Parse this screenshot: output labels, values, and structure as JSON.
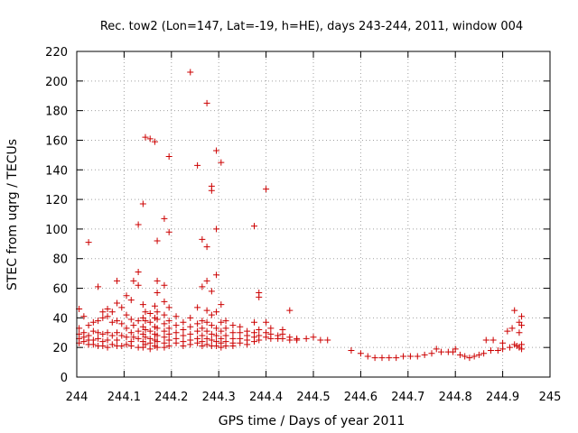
{
  "chart_data": {
    "type": "scatter",
    "title": "Rec. tow2 (Lon=147, Lat=-19, h=HE), days 243-244, 2011, window 004",
    "xlabel": "GPS time / Days of year 2011",
    "ylabel": "STEC from uqrg / TECUs",
    "xlim": [
      244,
      245
    ],
    "ylim": [
      0,
      220
    ],
    "xticks": [
      "244",
      "244.1",
      "244.2",
      "244.3",
      "244.4",
      "244.5",
      "244.6",
      "244.7",
      "244.8",
      "244.9",
      "245"
    ],
    "yticks": [
      "0",
      "20",
      "40",
      "60",
      "80",
      "100",
      "120",
      "140",
      "160",
      "180",
      "200",
      "220"
    ],
    "marker": "+",
    "color": "#cc0000",
    "grid": true,
    "series": [
      {
        "name": "STEC",
        "points": [
          [
            244.005,
            46
          ],
          [
            244.005,
            33
          ],
          [
            244.005,
            29
          ],
          [
            244.005,
            26
          ],
          [
            244.005,
            23
          ],
          [
            244.015,
            41
          ],
          [
            244.015,
            30
          ],
          [
            244.015,
            27
          ],
          [
            244.015,
            24
          ],
          [
            244.025,
            91
          ],
          [
            244.025,
            35
          ],
          [
            244.025,
            28
          ],
          [
            244.025,
            25
          ],
          [
            244.025,
            22
          ],
          [
            244.035,
            37
          ],
          [
            244.035,
            31
          ],
          [
            244.035,
            25
          ],
          [
            244.035,
            22
          ],
          [
            244.045,
            61
          ],
          [
            244.045,
            38
          ],
          [
            244.045,
            30
          ],
          [
            244.045,
            26
          ],
          [
            244.045,
            21
          ],
          [
            244.055,
            44
          ],
          [
            244.055,
            40
          ],
          [
            244.055,
            29
          ],
          [
            244.055,
            24
          ],
          [
            244.055,
            21
          ],
          [
            244.065,
            46
          ],
          [
            244.065,
            41
          ],
          [
            244.065,
            30
          ],
          [
            244.065,
            25
          ],
          [
            244.065,
            20
          ],
          [
            244.075,
            44
          ],
          [
            244.075,
            37
          ],
          [
            244.075,
            28
          ],
          [
            244.075,
            22
          ],
          [
            244.085,
            65
          ],
          [
            244.085,
            50
          ],
          [
            244.085,
            38
          ],
          [
            244.085,
            30
          ],
          [
            244.085,
            25
          ],
          [
            244.085,
            21
          ],
          [
            244.095,
            47
          ],
          [
            244.095,
            36
          ],
          [
            244.095,
            28
          ],
          [
            244.095,
            21
          ],
          [
            244.105,
            55
          ],
          [
            244.105,
            42
          ],
          [
            244.105,
            33
          ],
          [
            244.105,
            27
          ],
          [
            244.105,
            22
          ],
          [
            244.115,
            52
          ],
          [
            244.115,
            39
          ],
          [
            244.115,
            30
          ],
          [
            244.115,
            24
          ],
          [
            244.115,
            21
          ],
          [
            244.12,
            65
          ],
          [
            244.12,
            35
          ],
          [
            244.12,
            27
          ],
          [
            244.13,
            103
          ],
          [
            244.13,
            71
          ],
          [
            244.13,
            62
          ],
          [
            244.13,
            38
          ],
          [
            244.13,
            31
          ],
          [
            244.13,
            26
          ],
          [
            244.13,
            20
          ],
          [
            244.14,
            117
          ],
          [
            244.14,
            49
          ],
          [
            244.14,
            40
          ],
          [
            244.14,
            34
          ],
          [
            244.14,
            29
          ],
          [
            244.14,
            24
          ],
          [
            244.14,
            20
          ],
          [
            244.145,
            162
          ],
          [
            244.145,
            44
          ],
          [
            244.145,
            38
          ],
          [
            244.145,
            32
          ],
          [
            244.145,
            27
          ],
          [
            244.145,
            22
          ],
          [
            244.155,
            161
          ],
          [
            244.155,
            43
          ],
          [
            244.155,
            37
          ],
          [
            244.155,
            31
          ],
          [
            244.155,
            26
          ],
          [
            244.155,
            23
          ],
          [
            244.155,
            19
          ],
          [
            244.165,
            159
          ],
          [
            244.165,
            48
          ],
          [
            244.165,
            40
          ],
          [
            244.165,
            34
          ],
          [
            244.165,
            29
          ],
          [
            244.165,
            25
          ],
          [
            244.165,
            21
          ],
          [
            244.17,
            92
          ],
          [
            244.17,
            65
          ],
          [
            244.17,
            57
          ],
          [
            244.17,
            44
          ],
          [
            244.17,
            39
          ],
          [
            244.17,
            33
          ],
          [
            244.17,
            28
          ],
          [
            244.17,
            24
          ],
          [
            244.17,
            20
          ],
          [
            244.185,
            107
          ],
          [
            244.185,
            62
          ],
          [
            244.185,
            51
          ],
          [
            244.185,
            42
          ],
          [
            244.185,
            36
          ],
          [
            244.185,
            31
          ],
          [
            244.185,
            27
          ],
          [
            244.185,
            23
          ],
          [
            244.185,
            20
          ],
          [
            244.195,
            149
          ],
          [
            244.195,
            98
          ],
          [
            244.195,
            47
          ],
          [
            244.195,
            38
          ],
          [
            244.195,
            33
          ],
          [
            244.195,
            29
          ],
          [
            244.195,
            25
          ],
          [
            244.195,
            21
          ],
          [
            244.21,
            41
          ],
          [
            244.21,
            35
          ],
          [
            244.21,
            30
          ],
          [
            244.21,
            26
          ],
          [
            244.21,
            23
          ],
          [
            244.225,
            37
          ],
          [
            244.225,
            32
          ],
          [
            244.225,
            28
          ],
          [
            244.225,
            24
          ],
          [
            244.225,
            21
          ],
          [
            244.24,
            206
          ],
          [
            244.24,
            40
          ],
          [
            244.24,
            34
          ],
          [
            244.24,
            29
          ],
          [
            244.24,
            25
          ],
          [
            244.24,
            22
          ],
          [
            244.255,
            143
          ],
          [
            244.255,
            47
          ],
          [
            244.255,
            36
          ],
          [
            244.255,
            31
          ],
          [
            244.255,
            26
          ],
          [
            244.255,
            23
          ],
          [
            244.265,
            93
          ],
          [
            244.265,
            61
          ],
          [
            244.265,
            38
          ],
          [
            244.265,
            33
          ],
          [
            244.265,
            28
          ],
          [
            244.265,
            24
          ],
          [
            244.265,
            21
          ],
          [
            244.275,
            185
          ],
          [
            244.275,
            88
          ],
          [
            244.275,
            65
          ],
          [
            244.275,
            45
          ],
          [
            244.275,
            37
          ],
          [
            244.275,
            31
          ],
          [
            244.275,
            26
          ],
          [
            244.275,
            22
          ],
          [
            244.285,
            129
          ],
          [
            244.285,
            126
          ],
          [
            244.285,
            58
          ],
          [
            244.285,
            42
          ],
          [
            244.285,
            35
          ],
          [
            244.285,
            29
          ],
          [
            244.285,
            25
          ],
          [
            244.285,
            21
          ],
          [
            244.295,
            153
          ],
          [
            244.295,
            100
          ],
          [
            244.295,
            69
          ],
          [
            244.295,
            44
          ],
          [
            244.295,
            33
          ],
          [
            244.295,
            28
          ],
          [
            244.295,
            24
          ],
          [
            244.295,
            21
          ],
          [
            244.305,
            145
          ],
          [
            244.305,
            49
          ],
          [
            244.305,
            37
          ],
          [
            244.305,
            31
          ],
          [
            244.305,
            26
          ],
          [
            244.305,
            23
          ],
          [
            244.305,
            20
          ],
          [
            244.315,
            38
          ],
          [
            244.315,
            33
          ],
          [
            244.315,
            28
          ],
          [
            244.315,
            24
          ],
          [
            244.315,
            21
          ],
          [
            244.33,
            35
          ],
          [
            244.33,
            30
          ],
          [
            244.33,
            26
          ],
          [
            244.33,
            23
          ],
          [
            244.33,
            21
          ],
          [
            244.345,
            34
          ],
          [
            244.345,
            30
          ],
          [
            244.345,
            26
          ],
          [
            244.345,
            23
          ],
          [
            244.36,
            31
          ],
          [
            244.36,
            28
          ],
          [
            244.36,
            25
          ],
          [
            244.36,
            22
          ],
          [
            244.375,
            102
          ],
          [
            244.375,
            37
          ],
          [
            244.375,
            30
          ],
          [
            244.375,
            27
          ],
          [
            244.375,
            24
          ],
          [
            244.385,
            57
          ],
          [
            244.385,
            54
          ],
          [
            244.385,
            32
          ],
          [
            244.385,
            28
          ],
          [
            244.385,
            25
          ],
          [
            244.4,
            127
          ],
          [
            244.4,
            37
          ],
          [
            244.4,
            30
          ],
          [
            244.4,
            27
          ],
          [
            244.41,
            33
          ],
          [
            244.41,
            29
          ],
          [
            244.41,
            26
          ],
          [
            244.425,
            28
          ],
          [
            244.425,
            26
          ],
          [
            244.435,
            32
          ],
          [
            244.435,
            29
          ],
          [
            244.435,
            26
          ],
          [
            244.45,
            45
          ],
          [
            244.45,
            27
          ],
          [
            244.45,
            25
          ],
          [
            244.465,
            26
          ],
          [
            244.465,
            25
          ],
          [
            244.485,
            26
          ],
          [
            244.5,
            27
          ],
          [
            244.515,
            25
          ],
          [
            244.53,
            25
          ],
          [
            244.58,
            18
          ],
          [
            244.6,
            16
          ],
          [
            244.615,
            14
          ],
          [
            244.63,
            13
          ],
          [
            244.645,
            13
          ],
          [
            244.66,
            13
          ],
          [
            244.675,
            13
          ],
          [
            244.69,
            14
          ],
          [
            244.705,
            14
          ],
          [
            244.72,
            14
          ],
          [
            244.735,
            15
          ],
          [
            244.75,
            16
          ],
          [
            244.76,
            19
          ],
          [
            244.77,
            17
          ],
          [
            244.785,
            17
          ],
          [
            244.795,
            17
          ],
          [
            244.8,
            19
          ],
          [
            244.81,
            15
          ],
          [
            244.82,
            14
          ],
          [
            244.83,
            13
          ],
          [
            244.84,
            14
          ],
          [
            244.85,
            15
          ],
          [
            244.86,
            16
          ],
          [
            244.865,
            25
          ],
          [
            244.875,
            18
          ],
          [
            244.88,
            25
          ],
          [
            244.89,
            18
          ],
          [
            244.9,
            23
          ],
          [
            244.9,
            19
          ],
          [
            244.91,
            31
          ],
          [
            244.915,
            20
          ],
          [
            244.92,
            33
          ],
          [
            244.925,
            45
          ],
          [
            244.925,
            22
          ],
          [
            244.93,
            21
          ],
          [
            244.935,
            37
          ],
          [
            244.935,
            30
          ],
          [
            244.935,
            20
          ],
          [
            244.94,
            41
          ],
          [
            244.94,
            35
          ],
          [
            244.94,
            22
          ],
          [
            244.94,
            19
          ]
        ]
      }
    ]
  }
}
